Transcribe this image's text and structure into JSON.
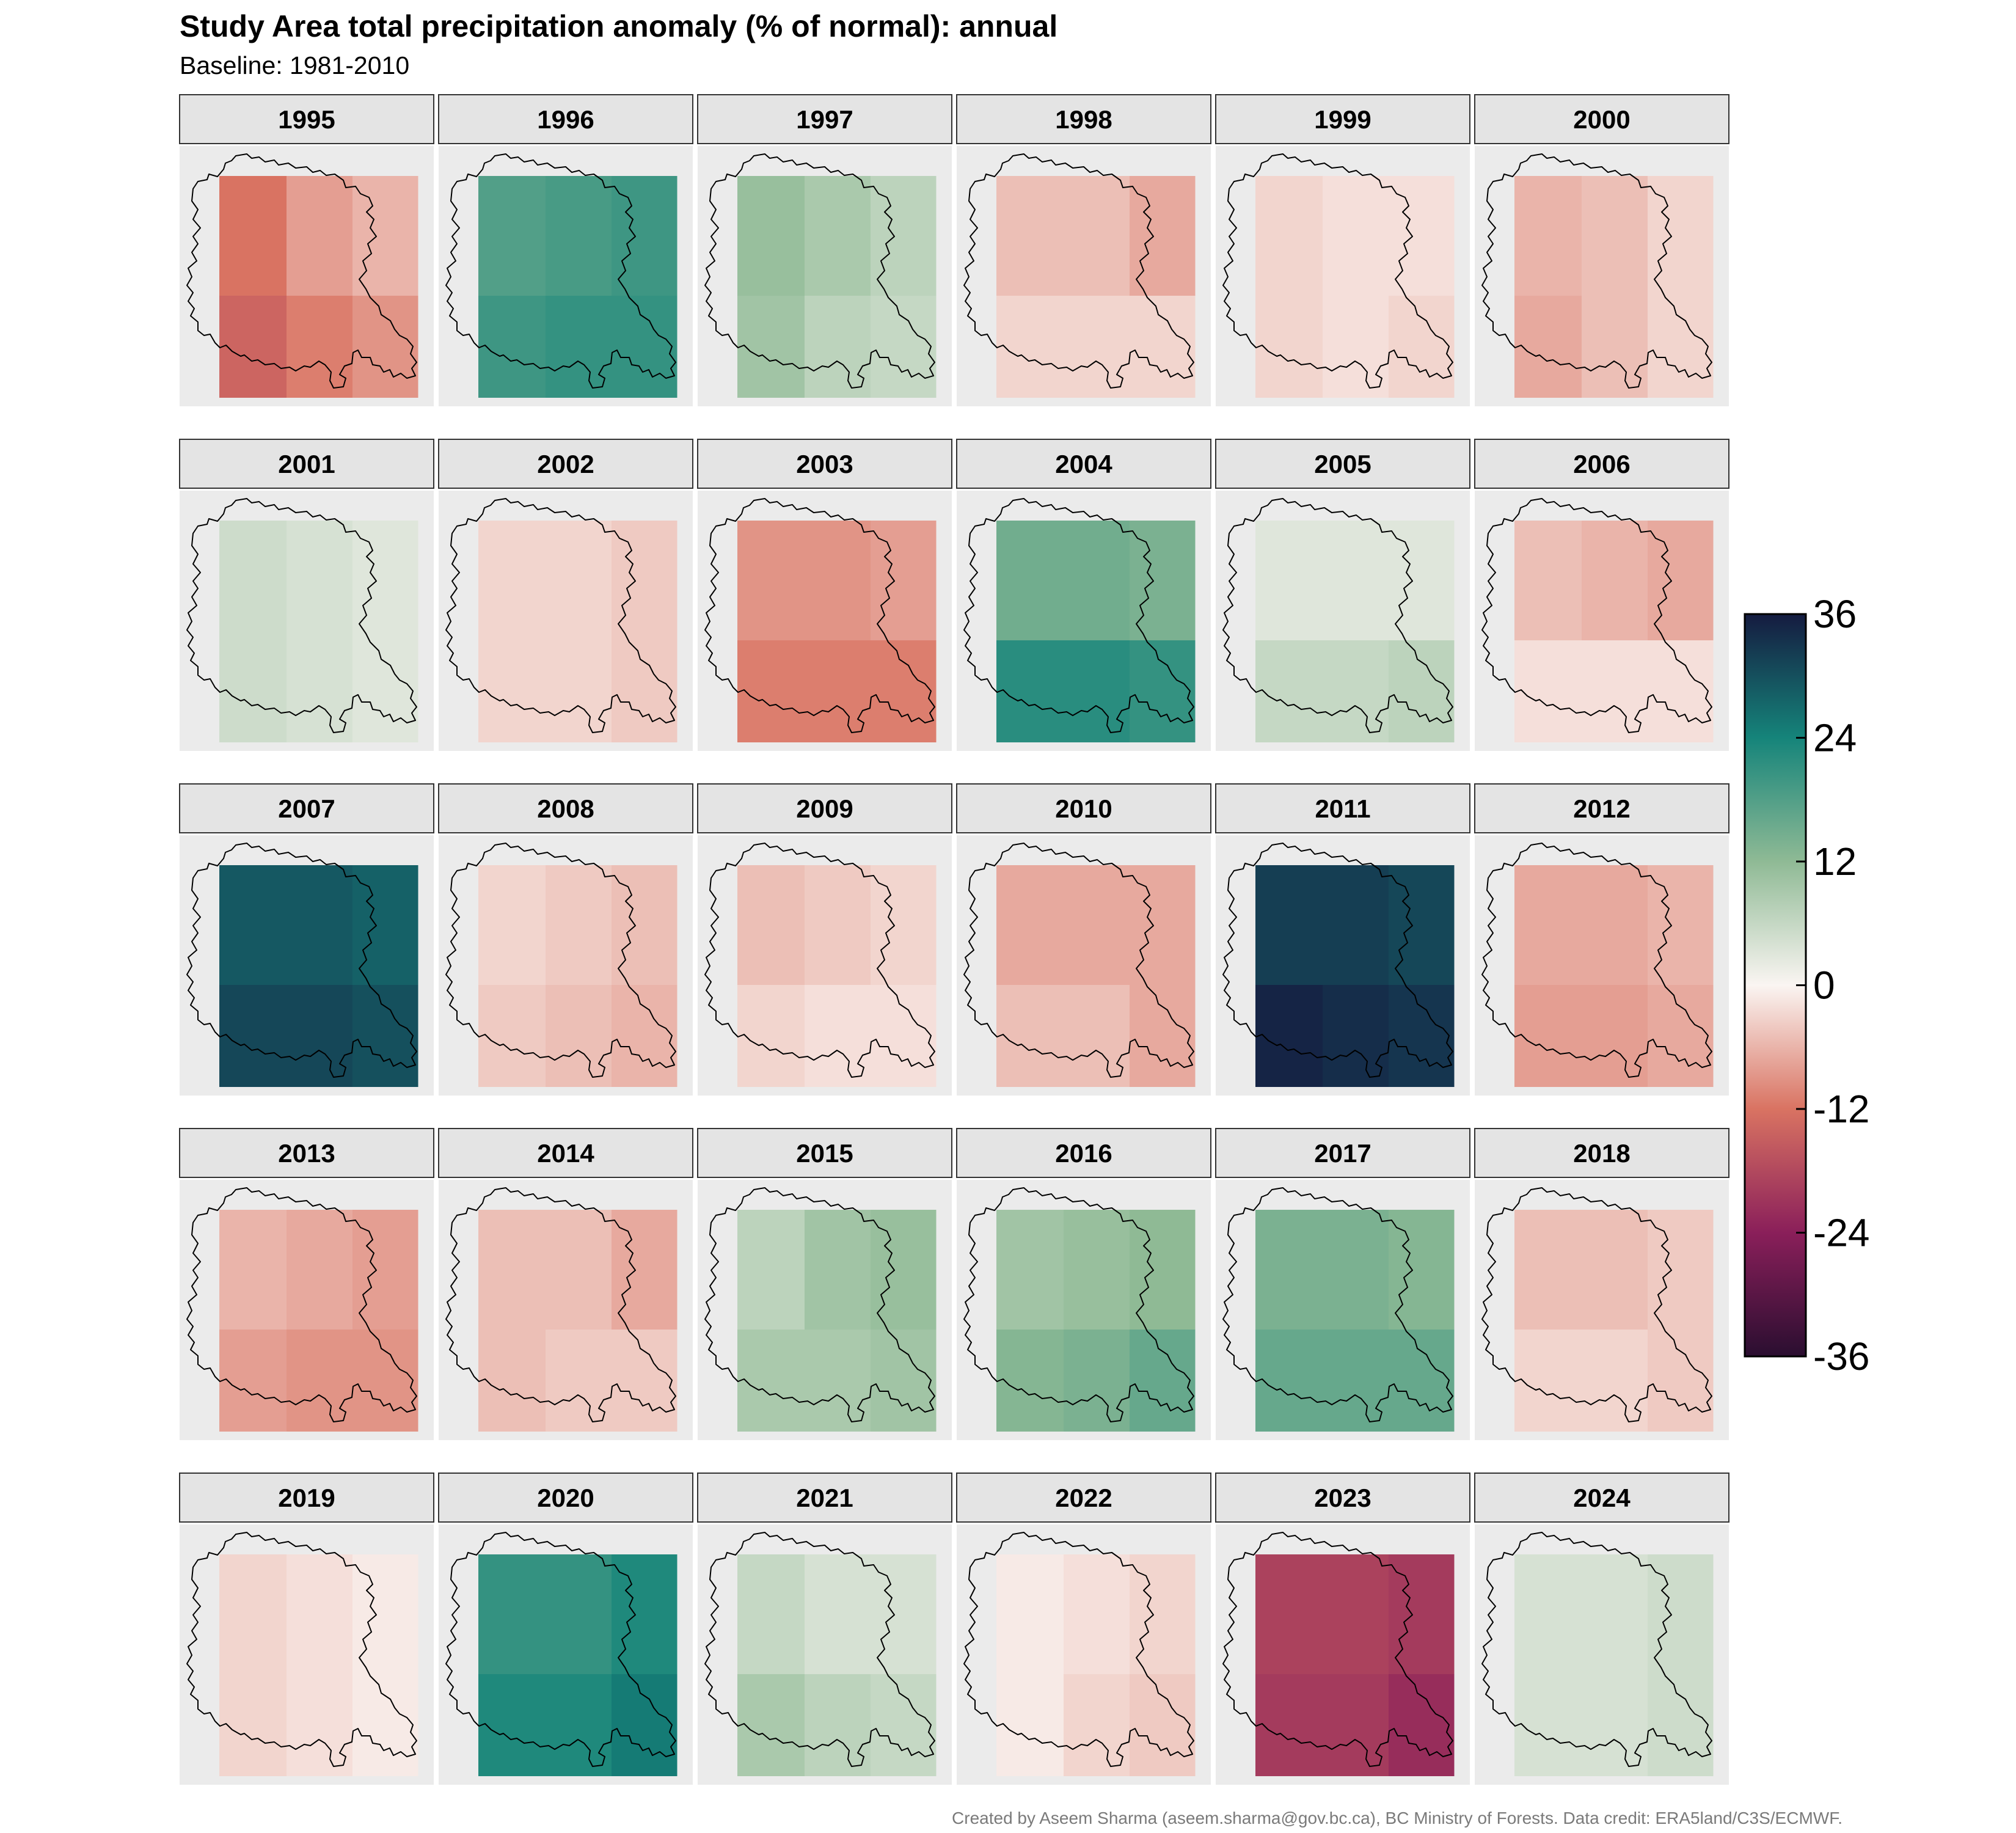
{
  "chart_data": {
    "type": "heatmap",
    "title": "Study Area total precipitation anomaly (% of normal): annual",
    "subtitle": "Baseline: 1981-2010",
    "caption": "Created by Aseem Sharma (aseem.sharma@gov.bc.ca), BC Ministry of Forests. Data credit: ERA5land/C3S/ECMWF.",
    "grid": "3 columns x 2 rows of cells per panel, clipped to study-area extent with boundary outline",
    "cell_order": "row-major, top row first (left, centre, right)",
    "colorbar": {
      "min": -36,
      "max": 36,
      "ticks": [
        "36",
        "24",
        "12",
        "0",
        "-12",
        "-24",
        "-36"
      ],
      "stops": [
        {
          "value": -36,
          "color": "#2a0e30"
        },
        {
          "value": -24,
          "color": "#8a1f5a"
        },
        {
          "value": -12,
          "color": "#d97362"
        },
        {
          "value": 0,
          "color": "#faf5f2"
        },
        {
          "value": 12,
          "color": "#8fba95"
        },
        {
          "value": 24,
          "color": "#15847a"
        },
        {
          "value": 36,
          "color": "#151b40"
        }
      ]
    },
    "panels": [
      {
        "year": "1995",
        "cells": [
          -12,
          -8,
          -6,
          -14,
          -11,
          -9
        ]
      },
      {
        "year": "1996",
        "cells": [
          18,
          19,
          20,
          20,
          21,
          21
        ]
      },
      {
        "year": "1997",
        "cells": [
          11,
          9,
          7,
          10,
          7,
          6
        ]
      },
      {
        "year": "1998",
        "cells": [
          -5,
          -5,
          -7,
          -3,
          -3,
          -3
        ]
      },
      {
        "year": "1999",
        "cells": [
          -3,
          -2,
          -2,
          -3,
          -2,
          -3
        ]
      },
      {
        "year": "2000",
        "cells": [
          -6,
          -5,
          -3,
          -7,
          -5,
          -3
        ]
      },
      {
        "year": "2001",
        "cells": [
          5,
          4,
          3,
          5,
          4,
          3
        ]
      },
      {
        "year": "2002",
        "cells": [
          -3,
          -3,
          -4,
          -3,
          -3,
          -4
        ]
      },
      {
        "year": "2003",
        "cells": [
          -9,
          -9,
          -8,
          -11,
          -11,
          -11
        ]
      },
      {
        "year": "2004",
        "cells": [
          15,
          15,
          14,
          22,
          22,
          21
        ]
      },
      {
        "year": "2005",
        "cells": [
          3,
          3,
          3,
          6,
          6,
          7
        ]
      },
      {
        "year": "2006",
        "cells": [
          -5,
          -6,
          -7,
          -2,
          -2,
          -2
        ]
      },
      {
        "year": "2007",
        "cells": [
          29,
          29,
          28,
          31,
          31,
          30
        ]
      },
      {
        "year": "2008",
        "cells": [
          -3,
          -4,
          -5,
          -4,
          -5,
          -6
        ]
      },
      {
        "year": "2009",
        "cells": [
          -5,
          -4,
          -3,
          -3,
          -2,
          -2
        ]
      },
      {
        "year": "2010",
        "cells": [
          -7,
          -7,
          -7,
          -5,
          -5,
          -7
        ]
      },
      {
        "year": "2011",
        "cells": [
          32,
          32,
          31,
          35,
          34,
          33
        ]
      },
      {
        "year": "2012",
        "cells": [
          -7,
          -7,
          -6,
          -8,
          -8,
          -7
        ]
      },
      {
        "year": "2013",
        "cells": [
          -6,
          -7,
          -8,
          -8,
          -9,
          -9
        ]
      },
      {
        "year": "2014",
        "cells": [
          -5,
          -5,
          -7,
          -5,
          -4,
          -4
        ]
      },
      {
        "year": "2015",
        "cells": [
          7,
          10,
          11,
          9,
          9,
          10
        ]
      },
      {
        "year": "2016",
        "cells": [
          10,
          11,
          12,
          13,
          14,
          16
        ]
      },
      {
        "year": "2017",
        "cells": [
          14,
          14,
          13,
          16,
          16,
          16
        ]
      },
      {
        "year": "2018",
        "cells": [
          -5,
          -5,
          -4,
          -3,
          -3,
          -4
        ]
      },
      {
        "year": "2019",
        "cells": [
          -3,
          -2,
          -1,
          -3,
          -2,
          -1
        ]
      },
      {
        "year": "2020",
        "cells": [
          21,
          21,
          23,
          23,
          23,
          25
        ]
      },
      {
        "year": "2021",
        "cells": [
          6,
          4,
          4,
          9,
          7,
          6
        ]
      },
      {
        "year": "2022",
        "cells": [
          -1,
          -2,
          -3,
          -1,
          -3,
          -4
        ]
      },
      {
        "year": "2023",
        "cells": [
          -19,
          -19,
          -20,
          -20,
          -20,
          -22
        ]
      },
      {
        "year": "2024",
        "cells": [
          4,
          4,
          5,
          4,
          4,
          5
        ]
      }
    ]
  }
}
